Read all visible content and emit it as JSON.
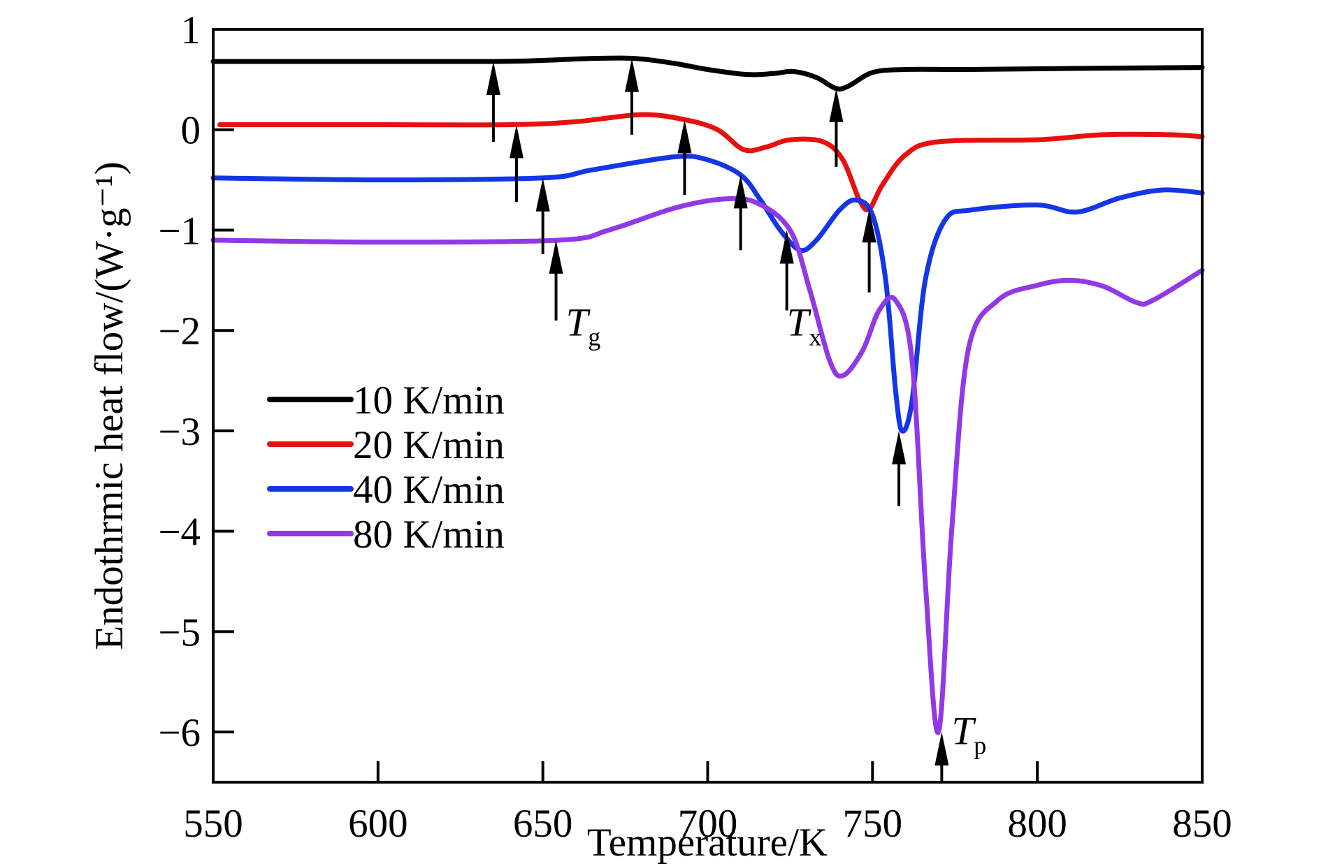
{
  "chart_data": {
    "type": "line",
    "title": "",
    "xlabel": "Temperature/K",
    "ylabel": "Endothrmic heat flow/(W·g⁻¹)",
    "xlim": [
      550,
      850
    ],
    "ylim": [
      -6.5,
      1
    ],
    "xticks": [
      550,
      600,
      650,
      700,
      750,
      800,
      850
    ],
    "yticks": [
      1,
      0,
      -1,
      -2,
      -3,
      -4,
      -5,
      -6
    ],
    "xtick_labels": [
      "550",
      "600",
      "650",
      "700",
      "750",
      "800",
      "850"
    ],
    "ytick_labels": [
      "1",
      "0",
      "−1",
      "−2",
      "−3",
      "−4",
      "−5",
      "−6"
    ],
    "grid": false,
    "legend_position": "center-left",
    "series": [
      {
        "name": "10 K/min",
        "color": "#000000",
        "x": [
          550,
          600,
          635,
          650,
          665,
          678,
          690,
          700,
          712,
          720,
          726,
          733,
          739,
          743,
          750,
          760,
          780,
          810,
          850
        ],
        "y": [
          0.68,
          0.68,
          0.68,
          0.69,
          0.71,
          0.71,
          0.66,
          0.6,
          0.55,
          0.56,
          0.58,
          0.52,
          0.41,
          0.44,
          0.57,
          0.6,
          0.6,
          0.61,
          0.62
        ]
      },
      {
        "name": "20 K/min",
        "color": "#e8100f",
        "x": [
          552,
          600,
          640,
          660,
          680,
          693,
          703,
          711,
          718,
          725,
          735,
          741,
          746,
          749,
          753,
          760,
          770,
          800,
          820,
          840,
          850
        ],
        "y": [
          0.05,
          0.05,
          0.05,
          0.08,
          0.15,
          0.1,
          0.0,
          -0.2,
          -0.17,
          -0.1,
          -0.12,
          -0.3,
          -0.7,
          -0.79,
          -0.55,
          -0.25,
          -0.12,
          -0.1,
          -0.05,
          -0.05,
          -0.07
        ]
      },
      {
        "name": "40 K/min",
        "color": "#1436e6",
        "x": [
          550,
          600,
          650,
          665,
          690,
          700,
          710,
          716,
          722,
          728,
          733,
          740,
          745,
          750,
          754,
          757,
          759,
          762,
          766,
          772,
          780,
          800,
          812,
          825,
          838,
          850
        ],
        "y": [
          -0.48,
          -0.5,
          -0.48,
          -0.4,
          -0.27,
          -0.3,
          -0.45,
          -0.7,
          -1.0,
          -1.2,
          -1.1,
          -0.8,
          -0.7,
          -0.85,
          -1.5,
          -2.6,
          -3.0,
          -2.7,
          -1.5,
          -0.9,
          -0.8,
          -0.75,
          -0.82,
          -0.68,
          -0.6,
          -0.63
        ]
      },
      {
        "name": "80 K/min",
        "color": "#9139e6",
        "x": [
          550,
          600,
          655,
          670,
          690,
          705,
          715,
          725,
          731,
          737,
          741,
          747,
          752,
          757,
          762,
          766,
          770,
          774,
          779,
          788,
          800,
          810,
          820,
          830,
          835,
          850
        ],
        "y": [
          -1.1,
          -1.12,
          -1.1,
          -1.0,
          -0.78,
          -0.69,
          -0.73,
          -1.0,
          -1.6,
          -2.3,
          -2.45,
          -2.2,
          -1.8,
          -1.7,
          -2.3,
          -4.5,
          -6.0,
          -4.0,
          -2.2,
          -1.7,
          -1.55,
          -1.5,
          -1.56,
          -1.72,
          -1.7,
          -1.4
        ]
      }
    ],
    "arrows": [
      {
        "series": "10 K/min",
        "x": 635,
        "tip": 0.68,
        "tail": -0.12
      },
      {
        "series": "10 K/min",
        "x": 677,
        "tip": 0.71,
        "tail": -0.05
      },
      {
        "series": "10 K/min",
        "x": 739,
        "tip": 0.41,
        "tail": -0.37
      },
      {
        "series": "20 K/min",
        "x": 642,
        "tip": 0.05,
        "tail": -0.72
      },
      {
        "series": "20 K/min",
        "x": 693,
        "tip": 0.1,
        "tail": -0.65
      },
      {
        "series": "20 K/min",
        "x": 749,
        "tip": -0.79,
        "tail": -1.62
      },
      {
        "series": "40 K/min",
        "x": 650,
        "tip": -0.48,
        "tail": -1.24
      },
      {
        "series": "40 K/min",
        "x": 710,
        "tip": -0.45,
        "tail": -1.2
      },
      {
        "series": "40 K/min",
        "x": 758,
        "tip": -3.0,
        "tail": -3.75
      },
      {
        "series": "80 K/min",
        "x": 654,
        "tip": -1.1,
        "tail": -1.9
      },
      {
        "series": "80 K/min",
        "x": 724,
        "tip": -1.0,
        "tail": -1.8
      },
      {
        "series": "80 K/min",
        "x": 771,
        "tip": -6.0,
        "tail": -6.5
      }
    ],
    "annotations": [
      {
        "main": "T",
        "sub": "g",
        "x": 657,
        "y": -2.05
      },
      {
        "main": "T",
        "sub": "x",
        "x": 724,
        "y": -2.05
      },
      {
        "main": "T",
        "sub": "p",
        "x": 774,
        "y": -6.12
      }
    ]
  }
}
